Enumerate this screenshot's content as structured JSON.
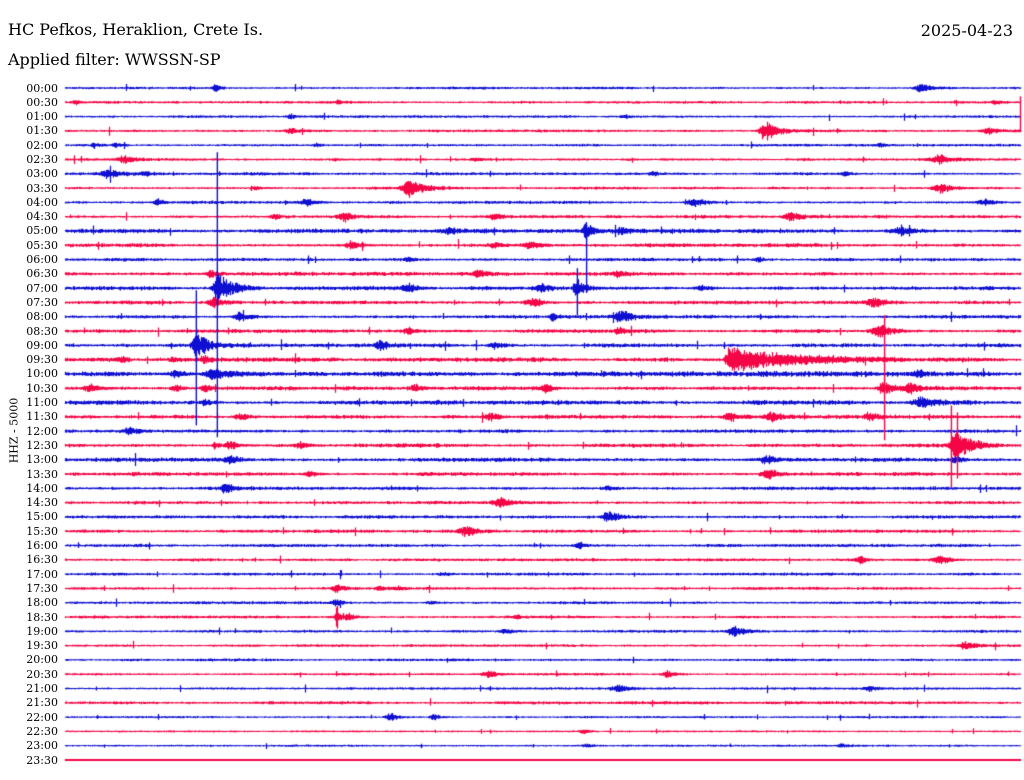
{
  "header": {
    "station_line": "HC Pefkos, Heraklion, Crete Is.",
    "date": "2025-04-23",
    "filter_line": "Applied filter: WWSSN-SP"
  },
  "axis": {
    "channel_label": "HHZ - 5000"
  },
  "colors": {
    "trace_blue": "#0f0fd2",
    "trace_red": "#f50546",
    "text": "#000000",
    "background": "#ffffff"
  },
  "chart_data": {
    "type": "line",
    "subtype": "helicorder-seismogram",
    "station": "HC Pefkos, Heraklion, Crete Is.",
    "date": "2025-04-23",
    "filter": "WWSSN-SP",
    "channel": "HHZ",
    "gain_label": "HHZ - 5000",
    "minutes_per_row": 30,
    "row_count": 48,
    "event_format": "[t_minutes_into_row, amplitude_px, attack_width_px, decay_width_px]",
    "rows": [
      {
        "label": "00:00",
        "color": "blue",
        "noise": 0.7,
        "events": [
          [
            4.7,
            4,
            2,
            5
          ],
          [
            26.9,
            5,
            4,
            9
          ]
        ]
      },
      {
        "label": "00:30",
        "color": "red",
        "noise": 0.7,
        "events": [
          [
            0.3,
            3,
            1.5,
            4
          ],
          [
            8.6,
            2,
            3,
            5
          ],
          [
            29.2,
            2.5,
            2,
            5
          ]
        ]
      },
      {
        "label": "01:00",
        "color": "blue",
        "noise": 0.7,
        "events": [
          [
            7.1,
            2.5,
            3,
            5
          ],
          [
            17.6,
            2,
            3,
            5
          ]
        ]
      },
      {
        "label": "01:30",
        "color": "red",
        "noise": 0.8,
        "events": [
          [
            7.1,
            3,
            4,
            6
          ],
          [
            22.0,
            11,
            4,
            13
          ],
          [
            29.0,
            3,
            4,
            8
          ]
        ]
      },
      {
        "label": "02:00",
        "color": "blue",
        "noise": 0.7,
        "events": [
          [
            0.9,
            3,
            1.5,
            4
          ],
          [
            1.6,
            2,
            3,
            5
          ],
          [
            7.9,
            2,
            2,
            3
          ],
          [
            25.6,
            2.5,
            3,
            6
          ]
        ]
      },
      {
        "label": "02:30",
        "color": "red",
        "noise": 0.8,
        "events": [
          [
            1.9,
            4,
            5,
            8
          ],
          [
            8.5,
            2,
            2,
            4
          ],
          [
            12.9,
            2,
            3,
            5
          ],
          [
            27.5,
            5,
            6,
            10
          ]
        ]
      },
      {
        "label": "03:00",
        "color": "blue",
        "noise": 0.9,
        "events": [
          [
            1.4,
            5,
            6,
            10
          ],
          [
            2.5,
            3,
            3,
            5
          ],
          [
            18.5,
            2.5,
            3,
            5
          ],
          [
            24.5,
            2.5,
            3,
            5
          ]
        ]
      },
      {
        "label": "03:30",
        "color": "red",
        "noise": 0.9,
        "events": [
          [
            6.0,
            2.5,
            3,
            5
          ],
          [
            10.8,
            11,
            4,
            12
          ],
          [
            27.5,
            5,
            5,
            9
          ]
        ]
      },
      {
        "label": "04:00",
        "color": "blue",
        "noise": 0.9,
        "events": [
          [
            2.9,
            5,
            2,
            5
          ],
          [
            7.6,
            4,
            5,
            8
          ],
          [
            19.8,
            5,
            5,
            9
          ],
          [
            28.9,
            4,
            5,
            8
          ]
        ]
      },
      {
        "label": "04:30",
        "color": "red",
        "noise": 1.0,
        "events": [
          [
            6.6,
            3,
            4,
            6
          ],
          [
            8.8,
            5,
            4,
            7
          ],
          [
            13.5,
            3,
            4,
            6
          ],
          [
            22.8,
            5,
            5,
            9
          ]
        ]
      },
      {
        "label": "05:00",
        "color": "blue",
        "noise": 1.4,
        "events": [
          [
            12.1,
            3,
            4,
            7
          ],
          [
            16.37,
            8,
            2.5,
            9
          ],
          [
            17.5,
            3,
            5,
            8
          ],
          [
            26.3,
            4,
            8,
            14
          ]
        ]
      },
      {
        "label": "05:30",
        "color": "red",
        "noise": 1.3,
        "events": [
          [
            9.0,
            4,
            4,
            7
          ],
          [
            13.5,
            3,
            4,
            6
          ],
          [
            14.6,
            4,
            4,
            7
          ]
        ]
      },
      {
        "label": "06:00",
        "color": "blue",
        "noise": 1.1,
        "events": [
          [
            10.8,
            2.5,
            3,
            5
          ],
          [
            21.8,
            2.5,
            3,
            5
          ]
        ]
      },
      {
        "label": "06:30",
        "color": "red",
        "noise": 1.2,
        "events": [
          [
            4.6,
            4,
            4,
            7
          ],
          [
            13.0,
            4,
            4,
            7
          ],
          [
            17.4,
            3,
            4,
            6
          ]
        ]
      },
      {
        "label": "07:00",
        "color": "blue",
        "noise": 1.4,
        "events": [
          [
            4.77,
            16,
            2.5,
            14
          ],
          [
            10.8,
            5,
            5,
            8
          ],
          [
            14.9,
            5,
            4,
            7
          ],
          [
            16.08,
            10,
            2.5,
            8
          ],
          [
            20.0,
            3,
            4,
            6
          ]
        ]
      },
      {
        "label": "07:30",
        "color": "red",
        "noise": 1.2,
        "events": [
          [
            4.7,
            5,
            4,
            8
          ],
          [
            14.7,
            5,
            5,
            8
          ],
          [
            25.4,
            6,
            5,
            9
          ]
        ]
      },
      {
        "label": "08:00",
        "color": "blue",
        "noise": 1.1,
        "events": [
          [
            5.5,
            6,
            4,
            8
          ],
          [
            15.3,
            5,
            1.5,
            4
          ],
          [
            17.5,
            6,
            6,
            10
          ]
        ]
      },
      {
        "label": "08:30",
        "color": "red",
        "noise": 1.2,
        "events": [
          [
            10.8,
            3,
            4,
            6
          ],
          [
            17.4,
            3,
            4,
            6
          ],
          [
            25.6,
            7,
            6,
            11
          ]
        ]
      },
      {
        "label": "09:00",
        "color": "blue",
        "noise": 1.3,
        "events": [
          [
            4.11,
            15,
            2.5,
            11
          ],
          [
            9.9,
            5,
            4,
            7
          ],
          [
            13.5,
            4,
            4,
            6
          ]
        ]
      },
      {
        "label": "09:30",
        "color": "red",
        "noise": 1.5,
        "events": [
          [
            1.8,
            3,
            3,
            5
          ],
          [
            3.4,
            3,
            3,
            5
          ],
          [
            4.4,
            4,
            3,
            5
          ],
          [
            20.89,
            15,
            3,
            55
          ]
        ]
      },
      {
        "label": "10:00",
        "color": "blue",
        "noise": 1.8,
        "events": [
          [
            3.5,
            4,
            4,
            8
          ],
          [
            4.6,
            6,
            4,
            25
          ],
          [
            26.8,
            3,
            5,
            8
          ]
        ]
      },
      {
        "label": "10:30",
        "color": "red",
        "noise": 1.3,
        "events": [
          [
            0.8,
            4,
            5,
            8
          ],
          [
            3.5,
            4,
            3,
            5
          ],
          [
            4.4,
            5,
            3,
            5
          ],
          [
            11.0,
            4,
            4,
            7
          ],
          [
            15.1,
            4,
            4,
            7
          ],
          [
            25.73,
            9,
            4,
            9
          ],
          [
            26.6,
            6,
            5,
            9
          ]
        ]
      },
      {
        "label": "11:00",
        "color": "blue",
        "noise": 1.6,
        "events": [
          [
            4.4,
            3,
            4,
            6
          ],
          [
            26.9,
            6,
            6,
            12
          ]
        ]
      },
      {
        "label": "11:30",
        "color": "red",
        "noise": 1.3,
        "events": [
          [
            5.5,
            4,
            4,
            7
          ],
          [
            13.4,
            4,
            4,
            7
          ],
          [
            20.9,
            5,
            4,
            7
          ],
          [
            22.2,
            5,
            4,
            7
          ],
          [
            25.3,
            4,
            4,
            6
          ]
        ]
      },
      {
        "label": "12:00",
        "color": "blue",
        "noise": 1.2,
        "events": [
          [
            2.0,
            4,
            4,
            8
          ]
        ]
      },
      {
        "label": "12:30",
        "color": "red",
        "noise": 1.3,
        "events": [
          [
            4.7,
            4,
            1.5,
            4
          ],
          [
            5.2,
            5,
            4,
            7
          ],
          [
            7.4,
            4,
            4,
            7
          ],
          [
            27.96,
            18,
            3,
            15
          ]
        ]
      },
      {
        "label": "13:00",
        "color": "blue",
        "noise": 1.5,
        "events": [
          [
            5.2,
            4,
            4,
            7
          ],
          [
            22.1,
            4,
            5,
            8
          ],
          [
            28.0,
            3,
            4,
            7
          ]
        ]
      },
      {
        "label": "13:30",
        "color": "red",
        "noise": 1.2,
        "events": [
          [
            7.7,
            3,
            4,
            6
          ],
          [
            22.1,
            6,
            5,
            9
          ]
        ]
      },
      {
        "label": "14:00",
        "color": "blue",
        "noise": 1.1,
        "events": [
          [
            5.0,
            6,
            2.5,
            8
          ],
          [
            17.1,
            3,
            4,
            6
          ]
        ]
      },
      {
        "label": "14:30",
        "color": "red",
        "noise": 1.0,
        "events": [
          [
            13.7,
            6,
            5,
            9
          ]
        ]
      },
      {
        "label": "15:00",
        "color": "blue",
        "noise": 1.0,
        "events": [
          [
            17.1,
            6,
            5,
            9
          ]
        ]
      },
      {
        "label": "15:30",
        "color": "red",
        "noise": 1.0,
        "events": [
          [
            12.6,
            6,
            5,
            9
          ]
        ]
      },
      {
        "label": "16:00",
        "color": "blue",
        "noise": 0.9,
        "events": [
          [
            16.2,
            3,
            4,
            6
          ]
        ]
      },
      {
        "label": "16:30",
        "color": "red",
        "noise": 0.9,
        "events": [
          [
            25.0,
            4,
            4,
            7
          ],
          [
            27.5,
            5,
            5,
            8
          ]
        ]
      },
      {
        "label": "17:00",
        "color": "blue",
        "noise": 0.8,
        "events": [
          [
            11.9,
            2,
            3,
            5
          ]
        ]
      },
      {
        "label": "17:30",
        "color": "red",
        "noise": 0.8,
        "events": [
          [
            8.5,
            5,
            2.5,
            7
          ],
          [
            9.9,
            2.5,
            3,
            5
          ],
          [
            10.5,
            2.5,
            3,
            5
          ]
        ]
      },
      {
        "label": "18:00",
        "color": "blue",
        "noise": 0.8,
        "events": [
          [
            8.5,
            3,
            3,
            5
          ],
          [
            11.5,
            2,
            3,
            5
          ]
        ]
      },
      {
        "label": "18:30",
        "color": "red",
        "noise": 0.8,
        "events": [
          [
            8.54,
            13,
            1.2,
            2.5
          ],
          [
            8.9,
            4,
            3,
            6
          ],
          [
            14.2,
            2,
            3,
            4
          ]
        ]
      },
      {
        "label": "19:00",
        "color": "blue",
        "noise": 0.8,
        "events": [
          [
            13.8,
            3,
            4,
            7
          ],
          [
            21.05,
            6,
            5,
            9
          ]
        ]
      },
      {
        "label": "19:30",
        "color": "red",
        "noise": 0.7,
        "events": [
          [
            28.3,
            5,
            4,
            8
          ]
        ]
      },
      {
        "label": "20:00",
        "color": "blue",
        "noise": 0.7,
        "events": []
      },
      {
        "label": "20:30",
        "color": "red",
        "noise": 0.7,
        "events": [
          [
            13.3,
            4,
            4,
            7
          ],
          [
            18.94,
            4,
            4,
            6
          ]
        ]
      },
      {
        "label": "21:00",
        "color": "blue",
        "noise": 0.6,
        "events": [
          [
            17.4,
            4,
            5,
            9
          ],
          [
            25.3,
            3,
            4,
            6
          ]
        ]
      },
      {
        "label": "21:30",
        "color": "red",
        "noise": 0.9,
        "events": []
      },
      {
        "label": "22:00",
        "color": "blue",
        "noise": 0.5,
        "events": [
          [
            10.2,
            5,
            3,
            7
          ],
          [
            11.6,
            3,
            3,
            5
          ]
        ]
      },
      {
        "label": "22:30",
        "color": "red",
        "noise": 0.4,
        "events": [
          [
            16.3,
            3,
            3,
            5
          ]
        ]
      },
      {
        "label": "23:00",
        "color": "blue",
        "noise": 0.5,
        "events": [
          [
            16.4,
            2,
            3,
            5
          ],
          [
            24.4,
            2,
            3,
            5
          ]
        ]
      },
      {
        "label": "23:30",
        "color": "red",
        "noise": 0.0,
        "events": []
      }
    ],
    "spikes": [
      {
        "row": 14,
        "t": 4.77,
        "up": 136,
        "down": 149,
        "color": "blue"
      },
      {
        "row": 18,
        "t": 4.11,
        "up": 55,
        "down": 80,
        "color": "blue"
      },
      {
        "row": 10,
        "t": 16.37,
        "up": 6,
        "down": 62,
        "color": "blue"
      },
      {
        "row": 14,
        "t": 16.08,
        "up": 20,
        "down": 27,
        "color": "blue"
      },
      {
        "row": 21,
        "t": 25.73,
        "up": 73,
        "down": 52,
        "color": "red"
      },
      {
        "row": 25,
        "t": 27.83,
        "up": 40,
        "down": 42,
        "color": "red"
      },
      {
        "row": 25,
        "t": 28.02,
        "up": 33,
        "down": 33,
        "color": "red"
      },
      {
        "row": 1,
        "t": 30.0,
        "up": 6,
        "down": 30,
        "color": "red"
      }
    ]
  }
}
